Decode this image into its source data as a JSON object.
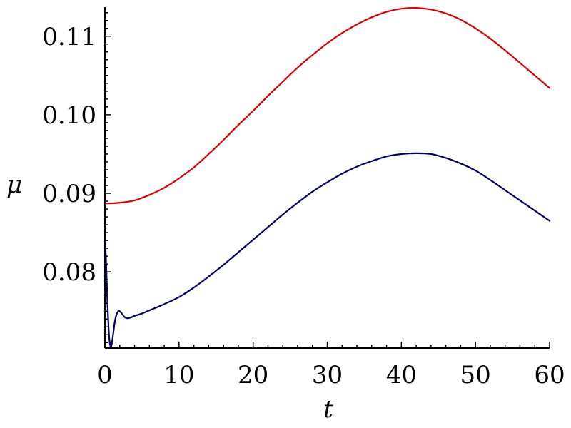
{
  "chart_data": {
    "type": "line",
    "xlabel": "t",
    "ylabel": "μ",
    "xlim": [
      0,
      60
    ],
    "ylim": [
      0.0703,
      0.1137
    ],
    "x_ticks": [
      0,
      10,
      20,
      30,
      40,
      50,
      60
    ],
    "x_tick_labels": [
      "0",
      "10",
      "20",
      "30",
      "40",
      "50",
      "60"
    ],
    "y_ticks": [
      0.08,
      0.09,
      0.1,
      0.11
    ],
    "y_tick_labels": [
      "0.08",
      "0.09",
      "0.10",
      "0.11"
    ],
    "grid": false,
    "legend": "none",
    "series": [
      {
        "color": "#dd0000",
        "x": [
          0,
          2,
          4,
          6,
          8,
          10,
          12,
          14,
          16,
          18,
          20,
          22,
          24,
          26,
          28,
          30,
          32,
          34,
          36,
          38,
          40,
          42,
          44,
          46,
          48,
          50,
          52,
          54,
          56,
          58,
          60
        ],
        "y": [
          0.0887,
          0.0888,
          0.0891,
          0.0898,
          0.0907,
          0.0919,
          0.0933,
          0.095,
          0.0968,
          0.0987,
          0.1005,
          0.1024,
          0.1042,
          0.106,
          0.1076,
          0.1091,
          0.1104,
          0.1115,
          0.1124,
          0.1131,
          0.1135,
          0.1136,
          0.1134,
          0.1129,
          0.1121,
          0.111,
          0.1097,
          0.1082,
          0.1066,
          0.105,
          0.1034
        ]
      },
      {
        "color": "#000066",
        "x": [
          0,
          0.15,
          0.35,
          0.55,
          0.75,
          0.9,
          1.1,
          1.4,
          1.8,
          2.2,
          2.6,
          3.0,
          3.5,
          4,
          5,
          6,
          8,
          10,
          12,
          14,
          16,
          18,
          20,
          22,
          24,
          26,
          28,
          30,
          32,
          34,
          36,
          38,
          40,
          42,
          44,
          46,
          48,
          50,
          52,
          54,
          56,
          58,
          60
        ],
        "y": [
          0.0845,
          0.0815,
          0.076,
          0.072,
          0.0705,
          0.0707,
          0.072,
          0.074,
          0.075,
          0.0748,
          0.0743,
          0.0741,
          0.0742,
          0.0744,
          0.0747,
          0.0751,
          0.0759,
          0.0768,
          0.078,
          0.0794,
          0.0809,
          0.0825,
          0.0841,
          0.0857,
          0.0873,
          0.0888,
          0.0902,
          0.0914,
          0.0925,
          0.0934,
          0.0941,
          0.0947,
          0.095,
          0.0951,
          0.095,
          0.0945,
          0.0938,
          0.0929,
          0.0917,
          0.0904,
          0.0891,
          0.0878,
          0.0865
        ]
      }
    ]
  }
}
